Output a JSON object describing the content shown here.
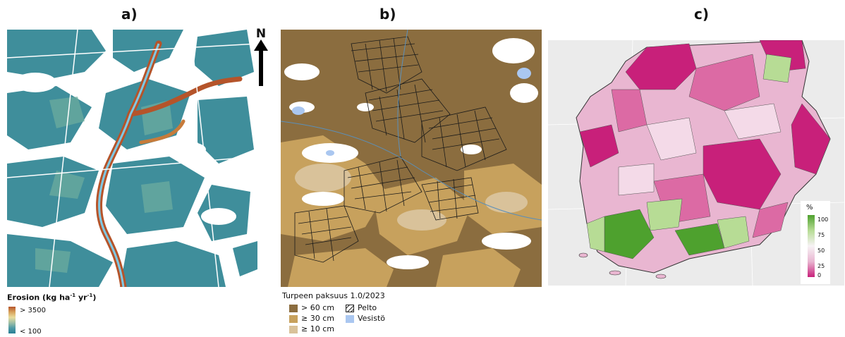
{
  "panels": {
    "a": {
      "label": "a)",
      "north_label": "N",
      "legend": {
        "title_main": "Erosion",
        "title_unit": "(kg ha",
        "sup1": "-1",
        "mid": " yr",
        "sup2": "-1",
        "end": ")",
        "high": "> 3500",
        "low": "< 100"
      }
    },
    "b": {
      "label": "b)",
      "legend": {
        "title": "Turpeen paksuus 1.0/2023",
        "items": [
          {
            "label": "> 60 cm",
            "color": "#8b6d3f"
          },
          {
            "label": "≥ 30 cm",
            "color": "#c7a15d"
          },
          {
            "label": "≥ 10 cm",
            "color": "#d9c29a"
          }
        ],
        "field_label": "Pelto",
        "water_label": "Vesistö",
        "water_color": "#aac7f0"
      }
    },
    "c": {
      "label": "c)",
      "legend": {
        "unit": "%",
        "ticks": [
          "100",
          "75",
          "50",
          "25",
          "0"
        ]
      }
    }
  },
  "colors": {
    "erosion_low": "#3a8c9e",
    "erosion_high": "#b5542a",
    "peat_deep": "#8b6d3f",
    "peat_mid": "#c7a15d",
    "peat_shallow": "#d9c29a",
    "pct_high": "#4ea12e",
    "pct_low": "#c8207a"
  }
}
